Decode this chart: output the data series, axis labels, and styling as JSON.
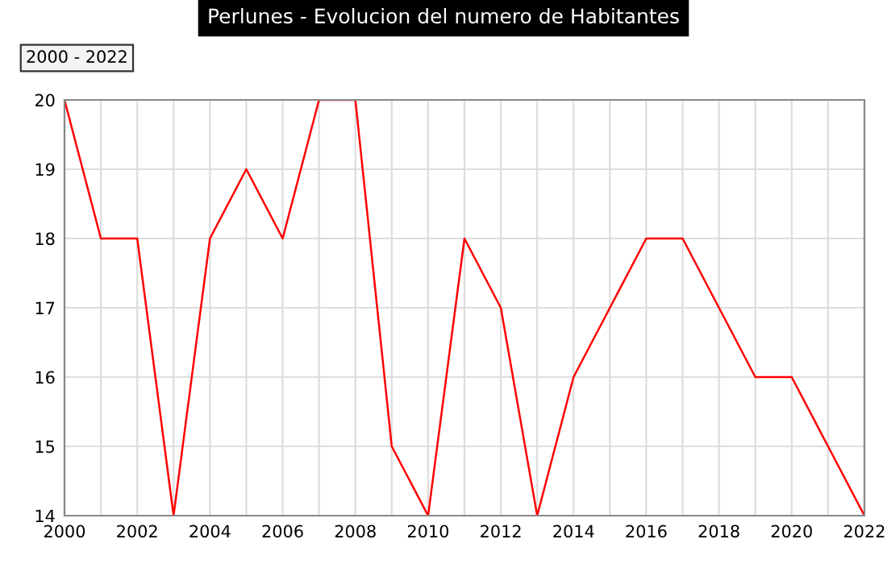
{
  "chart_data": {
    "type": "line",
    "title": "Perlunes - Evolucion del numero de Habitantes",
    "annotations": [
      "2000 - 2022"
    ],
    "x": [
      2000,
      2001,
      2002,
      2003,
      2004,
      2005,
      2006,
      2007,
      2008,
      2009,
      2010,
      2011,
      2012,
      2013,
      2014,
      2015,
      2016,
      2017,
      2018,
      2019,
      2020,
      2021,
      2022
    ],
    "series": [
      {
        "color": "#ff0000",
        "values": [
          20,
          18,
          18,
          14,
          18,
          19,
          18,
          20,
          20,
          15,
          14,
          18,
          17,
          14,
          16,
          17,
          18,
          18,
          17,
          16,
          16,
          15,
          14
        ]
      }
    ],
    "xlim": [
      2000,
      2022
    ],
    "xticks": [
      2000,
      {
        "value": 2001,
        "label": null
      },
      2002,
      {
        "value": 2003,
        "label": null
      },
      2004,
      {
        "value": 2005,
        "label": null
      },
      2006,
      {
        "value": 2007,
        "label": null
      },
      2008,
      {
        "value": 2009,
        "label": null
      },
      2010,
      {
        "value": 2011,
        "label": null
      },
      2012,
      {
        "value": 2013,
        "label": null
      },
      2014,
      {
        "value": 2015,
        "label": null
      },
      2016,
      {
        "value": 2017,
        "label": null
      },
      2018,
      {
        "value": 2019,
        "label": null
      },
      2020,
      {
        "value": 2021,
        "label": null
      },
      2022
    ],
    "ylim": [
      14,
      20
    ],
    "yticks": [
      14,
      15,
      16,
      17,
      18,
      19,
      20
    ],
    "grid": true,
    "marker": "none",
    "line_style": "solid",
    "legend": false
  }
}
